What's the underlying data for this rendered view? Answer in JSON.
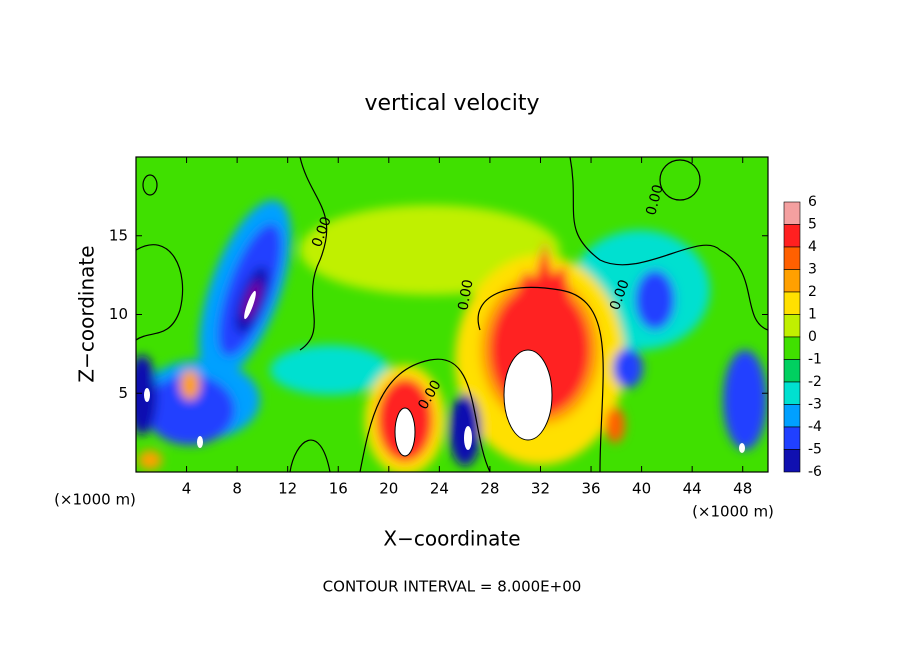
{
  "chart_data": {
    "type": "contour",
    "title": "vertical velocity",
    "x_label": "X−coordinate",
    "y_label": "Z−coordinate",
    "x_unit_label": "(×1000 m)",
    "y_unit_label": "(×1000 m)",
    "footnote": "CONTOUR INTERVAL = 8.000E+00",
    "contour_label": "0.00",
    "xlim": [
      0,
      50
    ],
    "ylim": [
      0,
      20
    ],
    "xticks": [
      4,
      8,
      12,
      16,
      20,
      24,
      28,
      32,
      36,
      40,
      44,
      48
    ],
    "yticks": [
      5,
      10,
      15
    ],
    "colorbar": {
      "levels": [
        6,
        5,
        4,
        3,
        2,
        1,
        0,
        -1,
        -2,
        -3,
        -4,
        -5,
        -6
      ],
      "colors": [
        "#f4a0a0",
        "#ff2020",
        "#ff6000",
        "#ffa000",
        "#ffe000",
        "#c0f000",
        "#40e000",
        "#00d060",
        "#00e0d0",
        "#00a0ff",
        "#2040ff",
        "#1010b0"
      ]
    }
  }
}
